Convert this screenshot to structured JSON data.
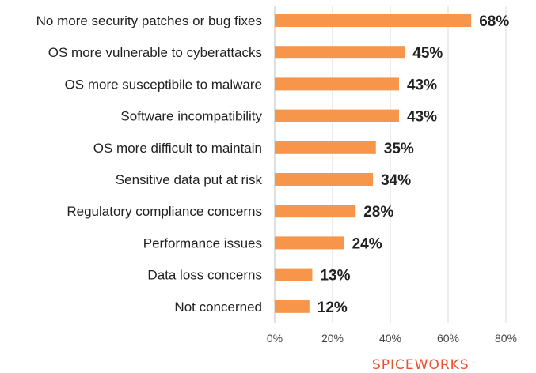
{
  "chart_data": {
    "type": "bar",
    "orientation": "horizontal",
    "title": "",
    "xlabel": "",
    "ylabel": "",
    "xlim": [
      0,
      80
    ],
    "x_ticks": [
      "0%",
      "20%",
      "40%",
      "60%",
      "80%"
    ],
    "grid": "vertical",
    "legend": "none",
    "bar_color": "#F7964A",
    "categories": [
      "No more security patches or bug fixes",
      "OS more vulnerable to cyberattacks",
      "OS more susceptibile to malware",
      "Software incompatibility",
      "OS more difficult to maintain",
      "Sensitive data put at risk",
      "Regulatory compliance concerns",
      "Performance issues",
      "Data loss concerns",
      "Not concerned"
    ],
    "values": [
      68,
      45,
      43,
      43,
      35,
      34,
      28,
      24,
      13,
      12
    ],
    "value_labels": [
      "68%",
      "45%",
      "43%",
      "43%",
      "35%",
      "34%",
      "28%",
      "24%",
      "13%",
      "12%"
    ]
  },
  "branding": {
    "logo_text": "SPICEWORKS",
    "logo_color": "#E8502F"
  }
}
